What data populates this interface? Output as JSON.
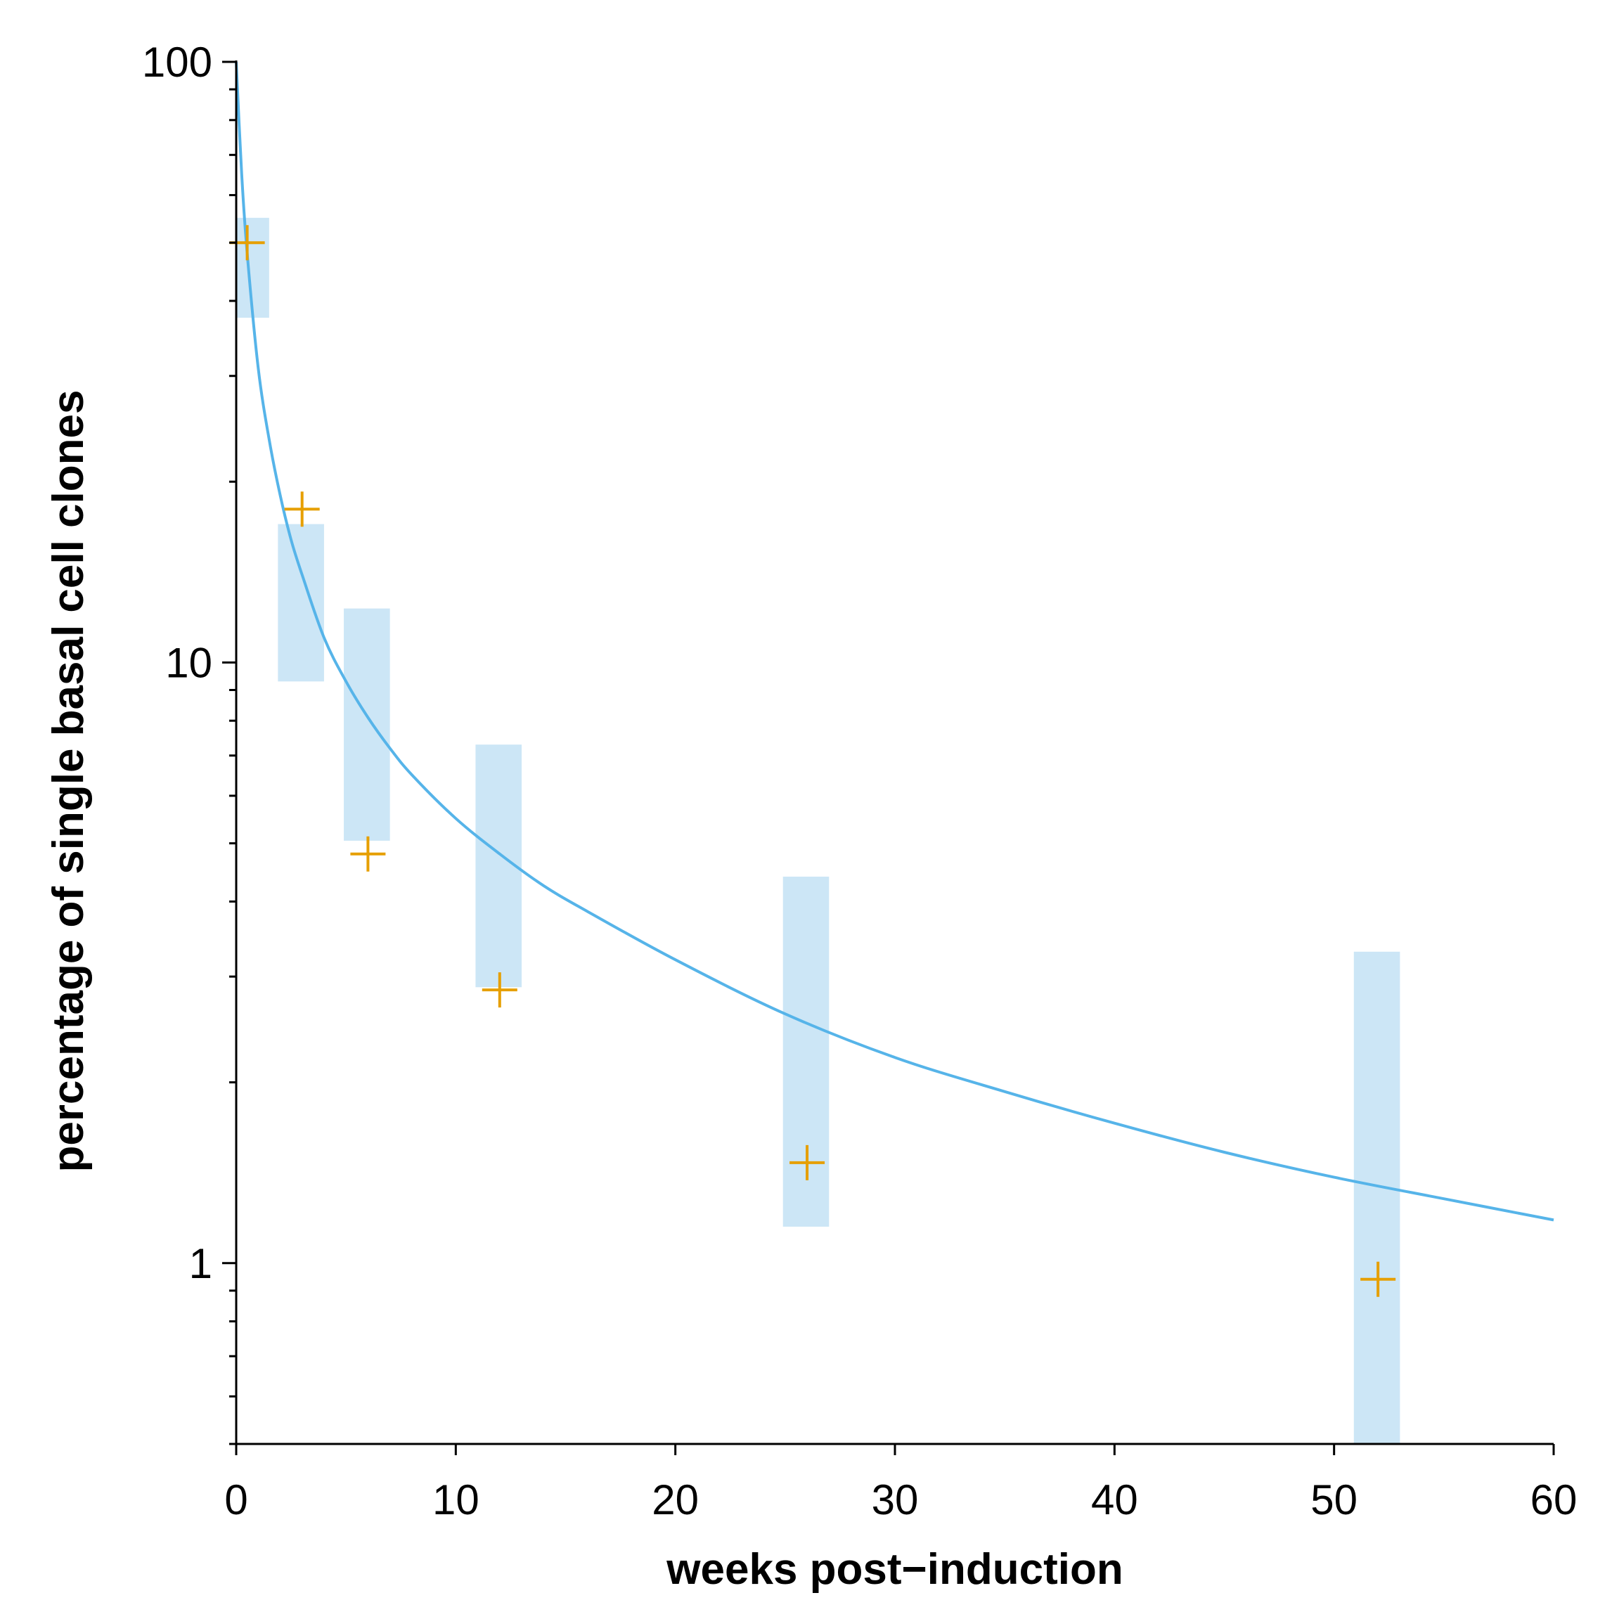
{
  "chart_data": {
    "type": "scatter",
    "title": "",
    "xlabel": "weeks post−induction",
    "ylabel": "percentage of single basal cell clones",
    "xlim": [
      0,
      60
    ],
    "ylim": [
      0.5,
      100
    ],
    "y_scale": "log",
    "x_ticks": [
      0,
      10,
      20,
      30,
      40,
      50,
      60
    ],
    "x_tick_labels": [
      "0",
      "10",
      "20",
      "30",
      "40",
      "50",
      "60"
    ],
    "y_ticks": [
      1,
      10,
      100
    ],
    "y_tick_labels": [
      "1",
      "10",
      "100"
    ],
    "grid": false,
    "legend": "none",
    "series": [
      {
        "kind": "points",
        "marker": "plus",
        "color": "#e69f00",
        "x": [
          0.5,
          3,
          6,
          12,
          26,
          52
        ],
        "y": [
          50,
          18,
          4.8,
          2.85,
          1.47,
          0.94
        ]
      },
      {
        "kind": "interval",
        "color": "#cce6f6",
        "x_ranges": [
          [
            0,
            1.5
          ],
          [
            1.9,
            4.0
          ],
          [
            4.9,
            7.0
          ],
          [
            10.9,
            13.0
          ],
          [
            24.9,
            27.0
          ],
          [
            50.9,
            53.0
          ]
        ],
        "y_ranges": [
          [
            37.5,
            55
          ],
          [
            9.3,
            17
          ],
          [
            5.05,
            12.3
          ],
          [
            2.88,
            7.3
          ],
          [
            1.15,
            4.4
          ],
          [
            0.5,
            3.3
          ]
        ]
      },
      {
        "kind": "line",
        "color": "#56b4e9",
        "x": [
          0,
          0.25,
          0.5,
          1,
          1.5,
          2,
          2.5,
          3,
          4,
          5,
          6,
          7,
          8,
          10,
          12,
          14,
          16,
          20,
          25,
          30,
          35,
          40,
          45,
          50,
          55,
          60
        ],
        "y": [
          100,
          65,
          48,
          31,
          23.5,
          19,
          16,
          14,
          11,
          9.3,
          8.1,
          7.2,
          6.5,
          5.5,
          4.8,
          4.25,
          3.85,
          3.2,
          2.6,
          2.2,
          1.93,
          1.71,
          1.53,
          1.39,
          1.28,
          1.18
        ]
      }
    ]
  }
}
